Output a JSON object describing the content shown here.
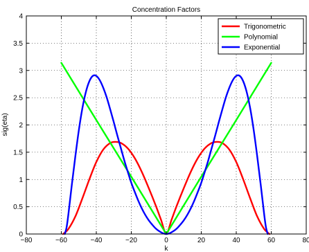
{
  "chart_data": {
    "type": "line",
    "title": "Concentration Factors",
    "xlabel": "k",
    "ylabel": "sig(eta)",
    "xlim": [
      -80,
      80
    ],
    "ylim": [
      0,
      4
    ],
    "xticks": [
      -80,
      -60,
      -40,
      -20,
      0,
      20,
      40,
      60,
      80
    ],
    "yticks": [
      0,
      0.5,
      1,
      1.5,
      2,
      2.5,
      3,
      3.5,
      4
    ],
    "xtick_labels": [
      "−80",
      "−60",
      "−40",
      "−20",
      "0",
      "20",
      "40",
      "60",
      "80"
    ],
    "ytick_labels": [
      "0",
      "0.5",
      "1",
      "1.5",
      "2",
      "2.5",
      "3",
      "3.5",
      "4"
    ],
    "grid": true,
    "legend_position": "top-right",
    "series": [
      {
        "name": "Trigonometric",
        "color": "#ff0000",
        "x": [
          -59,
          -56,
          -52,
          -48,
          -44,
          -40,
          -36,
          -32,
          -29,
          -26,
          -22,
          -18,
          -14,
          -10,
          -6,
          -3,
          0,
          3,
          6,
          10,
          14,
          18,
          22,
          26,
          29,
          32,
          36,
          40,
          44,
          48,
          52,
          56,
          59
        ],
        "y": [
          0.0,
          0.09,
          0.32,
          0.65,
          1.0,
          1.32,
          1.55,
          1.67,
          1.69,
          1.67,
          1.57,
          1.39,
          1.14,
          0.84,
          0.52,
          0.26,
          0.0,
          0.26,
          0.52,
          0.84,
          1.14,
          1.39,
          1.57,
          1.67,
          1.69,
          1.67,
          1.55,
          1.32,
          1.0,
          0.65,
          0.32,
          0.09,
          0.0
        ]
      },
      {
        "name": "Polynomial",
        "color": "#00ff00",
        "x": [
          -60,
          -40,
          -20,
          0,
          20,
          40,
          60
        ],
        "y": [
          3.14,
          2.09,
          1.05,
          0.0,
          1.05,
          2.09,
          3.14
        ]
      },
      {
        "name": "Exponential",
        "color": "#0000ff",
        "x": [
          -58,
          -57,
          -56,
          -54,
          -52,
          -50,
          -48,
          -46,
          -44,
          -42,
          -40,
          -38,
          -36,
          -34,
          -32,
          -30,
          -28,
          -26,
          -24,
          -22,
          -20,
          -18,
          -16,
          -14,
          -12,
          -10,
          -8,
          -6,
          -4,
          -2,
          0,
          2,
          4,
          6,
          8,
          10,
          12,
          14,
          16,
          18,
          20,
          22,
          24,
          26,
          28,
          30,
          32,
          34,
          36,
          38,
          40,
          42,
          44,
          46,
          48,
          50,
          52,
          54,
          56,
          57,
          58
        ],
        "y": [
          0.0,
          0.12,
          0.35,
          0.9,
          1.42,
          1.9,
          2.3,
          2.6,
          2.8,
          2.9,
          2.9,
          2.82,
          2.68,
          2.5,
          2.28,
          2.05,
          1.81,
          1.58,
          1.35,
          1.14,
          0.94,
          0.77,
          0.61,
          0.47,
          0.35,
          0.25,
          0.17,
          0.1,
          0.05,
          0.015,
          0.0,
          0.015,
          0.05,
          0.1,
          0.17,
          0.25,
          0.35,
          0.47,
          0.61,
          0.77,
          0.94,
          1.14,
          1.35,
          1.58,
          1.81,
          2.05,
          2.28,
          2.5,
          2.68,
          2.82,
          2.9,
          2.9,
          2.8,
          2.6,
          2.3,
          1.9,
          1.42,
          0.9,
          0.35,
          0.12,
          0.0
        ]
      }
    ]
  }
}
